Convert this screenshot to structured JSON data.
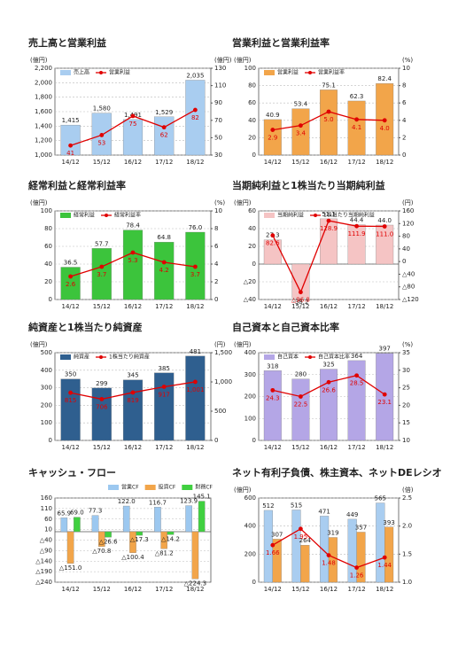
{
  "chart_data": [
    {
      "type": "bar",
      "title": "売上高と営業利益",
      "unit": "(億円)",
      "unit2": "(億円)",
      "categories": [
        "14/12",
        "15/12",
        "16/12",
        "17/12",
        "18/12"
      ],
      "ylim": [
        1000,
        2200
      ],
      "yticks": [
        {
          "value": 1000,
          "label": "1,000"
        },
        {
          "value": 1200,
          "label": "1,200"
        },
        {
          "value": 1400,
          "label": "1,400"
        },
        {
          "value": 1600,
          "label": "1,600"
        },
        {
          "value": 1800,
          "label": "1,800"
        },
        {
          "value": 2000,
          "label": "2,000"
        },
        {
          "value": 2200,
          "label": "2,200"
        }
      ],
      "y2lim": [
        30,
        130
      ],
      "y2ticks": [
        30,
        50,
        70,
        90,
        110,
        130
      ],
      "grid": true,
      "legend": true,
      "series": [
        {
          "name": "売上高",
          "type": "bar",
          "color": "#a9cdf0",
          "values": [
            1415,
            1580,
            1491,
            1529,
            2035
          ],
          "value_labels": [
            "1,415",
            "1,580",
            "1,491",
            "1,529",
            "2,035"
          ]
        },
        {
          "name": "営業利益",
          "type": "line",
          "axis": "y2",
          "color": "#e00000",
          "values": [
            41,
            53,
            75,
            62,
            82
          ]
        }
      ]
    },
    {
      "type": "bar",
      "title": "営業利益と営業利益率",
      "unit": "(億円)",
      "unit2": "(%)",
      "categories": [
        "14/12",
        "15/12",
        "16/12",
        "17/12",
        "18/12"
      ],
      "ylim": [
        0,
        100
      ],
      "yticks": [
        0,
        20,
        40,
        60,
        80,
        100
      ],
      "y2lim": [
        0,
        10
      ],
      "y2ticks": [
        0,
        2,
        4,
        6,
        8,
        10
      ],
      "grid": true,
      "legend": true,
      "series": [
        {
          "name": "営業利益",
          "type": "bar",
          "color": "#f2a54a",
          "values": [
            40.9,
            53.4,
            75.1,
            62.3,
            82.4
          ]
        },
        {
          "name": "営業利益率",
          "type": "line",
          "axis": "y2",
          "color": "#e00000",
          "values": [
            2.9,
            3.4,
            5.0,
            4.1,
            4.0
          ],
          "value_labels": [
            "2.9",
            "3.4",
            "5.0",
            "4.1",
            "4.0"
          ]
        }
      ]
    },
    {
      "type": "bar",
      "title": "経常利益と経常利益率",
      "unit": "(億円)",
      "unit2": "(%)",
      "categories": [
        "14/12",
        "15/12",
        "16/12",
        "17/12",
        "18/12"
      ],
      "ylim": [
        0,
        100
      ],
      "yticks": [
        0,
        20,
        40,
        60,
        80,
        100
      ],
      "y2lim": [
        0,
        10
      ],
      "y2ticks": [
        0,
        2,
        4,
        6,
        8,
        10
      ],
      "grid": true,
      "legend": true,
      "series": [
        {
          "name": "経常利益",
          "type": "bar",
          "color": "#3cc43c",
          "values": [
            36.5,
            57.7,
            78.4,
            64.8,
            76.0
          ],
          "value_labels": [
            "36.5",
            "57.7",
            "78.4",
            "64.8",
            "76.0"
          ]
        },
        {
          "name": "経常利益率",
          "type": "line",
          "axis": "y2",
          "color": "#e00000",
          "values": [
            2.6,
            3.7,
            5.3,
            4.2,
            3.7
          ]
        }
      ]
    },
    {
      "type": "bar",
      "title": "当期純利益と1株当たり当期純利益",
      "unit": "(億円)",
      "unit2": "(円)",
      "categories": [
        "14/12",
        "15/12",
        "16/12",
        "17/12",
        "18/12"
      ],
      "ylim": [
        -40,
        60
      ],
      "yticks": [
        {
          "value": -40,
          "label": "△40"
        },
        {
          "value": -20,
          "label": "△20"
        },
        0,
        20,
        40,
        60
      ],
      "y2lim": [
        -120,
        160
      ],
      "y2ticks": [
        {
          "value": -120,
          "label": "△120"
        },
        {
          "value": -80,
          "label": "△80"
        },
        {
          "value": -40,
          "label": "△40"
        },
        0,
        40,
        80,
        120,
        160
      ],
      "grid": true,
      "legend": true,
      "series": [
        {
          "name": "当期純利益",
          "type": "bar",
          "color": "#f5c4c4",
          "values": [
            27.3,
            -38.2,
            51.1,
            44.4,
            44.0
          ],
          "value_labels": [
            "27.3",
            "-38.2",
            "51.1",
            "44.4",
            "44.0"
          ]
        },
        {
          "name": "1株当たり当期純利益",
          "type": "line",
          "axis": "y2",
          "color": "#e00000",
          "values": [
            82.6,
            -96.8,
            128.9,
            111.9,
            111.0
          ],
          "value_labels": [
            "82.6",
            "△96.8",
            "128.9",
            "111.9",
            "111.0"
          ]
        }
      ]
    },
    {
      "type": "bar",
      "title": "純資産と1株当たり純資産",
      "unit": "(億円)",
      "unit2": "(円)",
      "categories": [
        "14/12",
        "15/12",
        "16/12",
        "17/12",
        "18/12"
      ],
      "ylim": [
        0,
        500
      ],
      "yticks": [
        0,
        100,
        200,
        300,
        400,
        500
      ],
      "y2lim": [
        0,
        1500
      ],
      "y2ticks": [
        0,
        500,
        {
          "value": 1000,
          "label": "1,000"
        },
        {
          "value": 1500,
          "label": "1,500"
        }
      ],
      "grid": true,
      "legend": true,
      "series": [
        {
          "name": "純資産",
          "type": "bar",
          "color": "#2f5f8f",
          "values": [
            350,
            299,
            345,
            385,
            481
          ]
        },
        {
          "name": "1株当たり純資産",
          "type": "line",
          "axis": "y2",
          "color": "#e00000",
          "values": [
            815,
            706,
            819,
            917,
            1001
          ],
          "value_labels": [
            "815",
            "706",
            "819",
            "917",
            "1,001"
          ]
        }
      ]
    },
    {
      "type": "bar",
      "title": "自己資本と自己資本比率",
      "unit": "(億円)",
      "unit2": "(%)",
      "categories": [
        "14/12",
        "15/12",
        "16/12",
        "17/12",
        "18/12"
      ],
      "ylim": [
        0,
        400
      ],
      "yticks": [
        0,
        100,
        200,
        300,
        400
      ],
      "y2lim": [
        10,
        35
      ],
      "y2ticks": [
        10,
        15,
        20,
        25,
        30,
        35
      ],
      "grid": true,
      "legend": true,
      "series": [
        {
          "name": "自己資本",
          "type": "bar",
          "color": "#b4a6e6",
          "values": [
            318,
            280,
            325,
            364,
            397
          ]
        },
        {
          "name": "自己資本比率",
          "type": "line",
          "axis": "y2",
          "color": "#e00000",
          "values": [
            24.3,
            22.5,
            26.6,
            28.5,
            23.1
          ]
        }
      ]
    },
    {
      "type": "bar",
      "title": "キャッシュ・フロー",
      "categories": [
        "14/12",
        "15/12",
        "16/12",
        "17/12",
        "18/12"
      ],
      "ylim": [
        -240,
        160
      ],
      "yticks": [
        {
          "value": -240,
          "label": "△240"
        },
        {
          "value": -190,
          "label": "△190"
        },
        {
          "value": -140,
          "label": "△140"
        },
        {
          "value": -90,
          "label": "△90"
        },
        {
          "value": -40,
          "label": "△40"
        },
        10,
        60,
        110,
        160
      ],
      "grid": true,
      "legend": true,
      "series": [
        {
          "name": "営業CF",
          "type": "bar",
          "color": "#9cc8f0",
          "values": [
            65.9,
            77.3,
            122.0,
            116.7,
            123.9
          ],
          "value_labels": [
            "65.9",
            "77.3",
            "122.0",
            "116.7",
            "123.9"
          ]
        },
        {
          "name": "投資CF",
          "type": "bar",
          "color": "#f2a54a",
          "values": [
            -151.0,
            -70.8,
            -100.4,
            -81.2,
            -224.3
          ],
          "value_labels": [
            "△151.0",
            "△70.8",
            "△100.4",
            "△81.2",
            "△224.3"
          ]
        },
        {
          "name": "財務CF",
          "type": "bar",
          "color": "#40d040",
          "values": [
            69.0,
            -26.6,
            -17.3,
            -14.2,
            145.1
          ],
          "value_labels": [
            "69.0",
            "△26.6",
            "△17.3",
            "△14.2",
            "145.1"
          ]
        }
      ]
    },
    {
      "type": "bar",
      "title": "ネット有利子負債、株主資本、ネットDEレシオ",
      "unit": "(億円)",
      "unit2": "(倍)",
      "categories": [
        "14/12",
        "15/12",
        "16/12",
        "17/12",
        "18/12"
      ],
      "ylim": [
        0,
        600
      ],
      "yticks": [
        0,
        200,
        400,
        600
      ],
      "y2lim": [
        1.0,
        2.5
      ],
      "y2ticks": [
        {
          "value": 1.0,
          "label": "1.0"
        },
        1.5,
        {
          "value": 2.0,
          "label": "2.0"
        },
        2.5
      ],
      "grid": true,
      "legend": false,
      "series": [
        {
          "type": "bar",
          "color": "#a9cdf0",
          "values": [
            512,
            515,
            471,
            449,
            565
          ]
        },
        {
          "type": "bar",
          "color": "#f2a54a",
          "values": [
            307,
            264,
            319,
            357,
            393
          ]
        },
        {
          "type": "line",
          "axis": "y2",
          "color": "#e00000",
          "values": [
            1.66,
            1.95,
            1.48,
            1.26,
            1.44
          ]
        }
      ]
    }
  ]
}
